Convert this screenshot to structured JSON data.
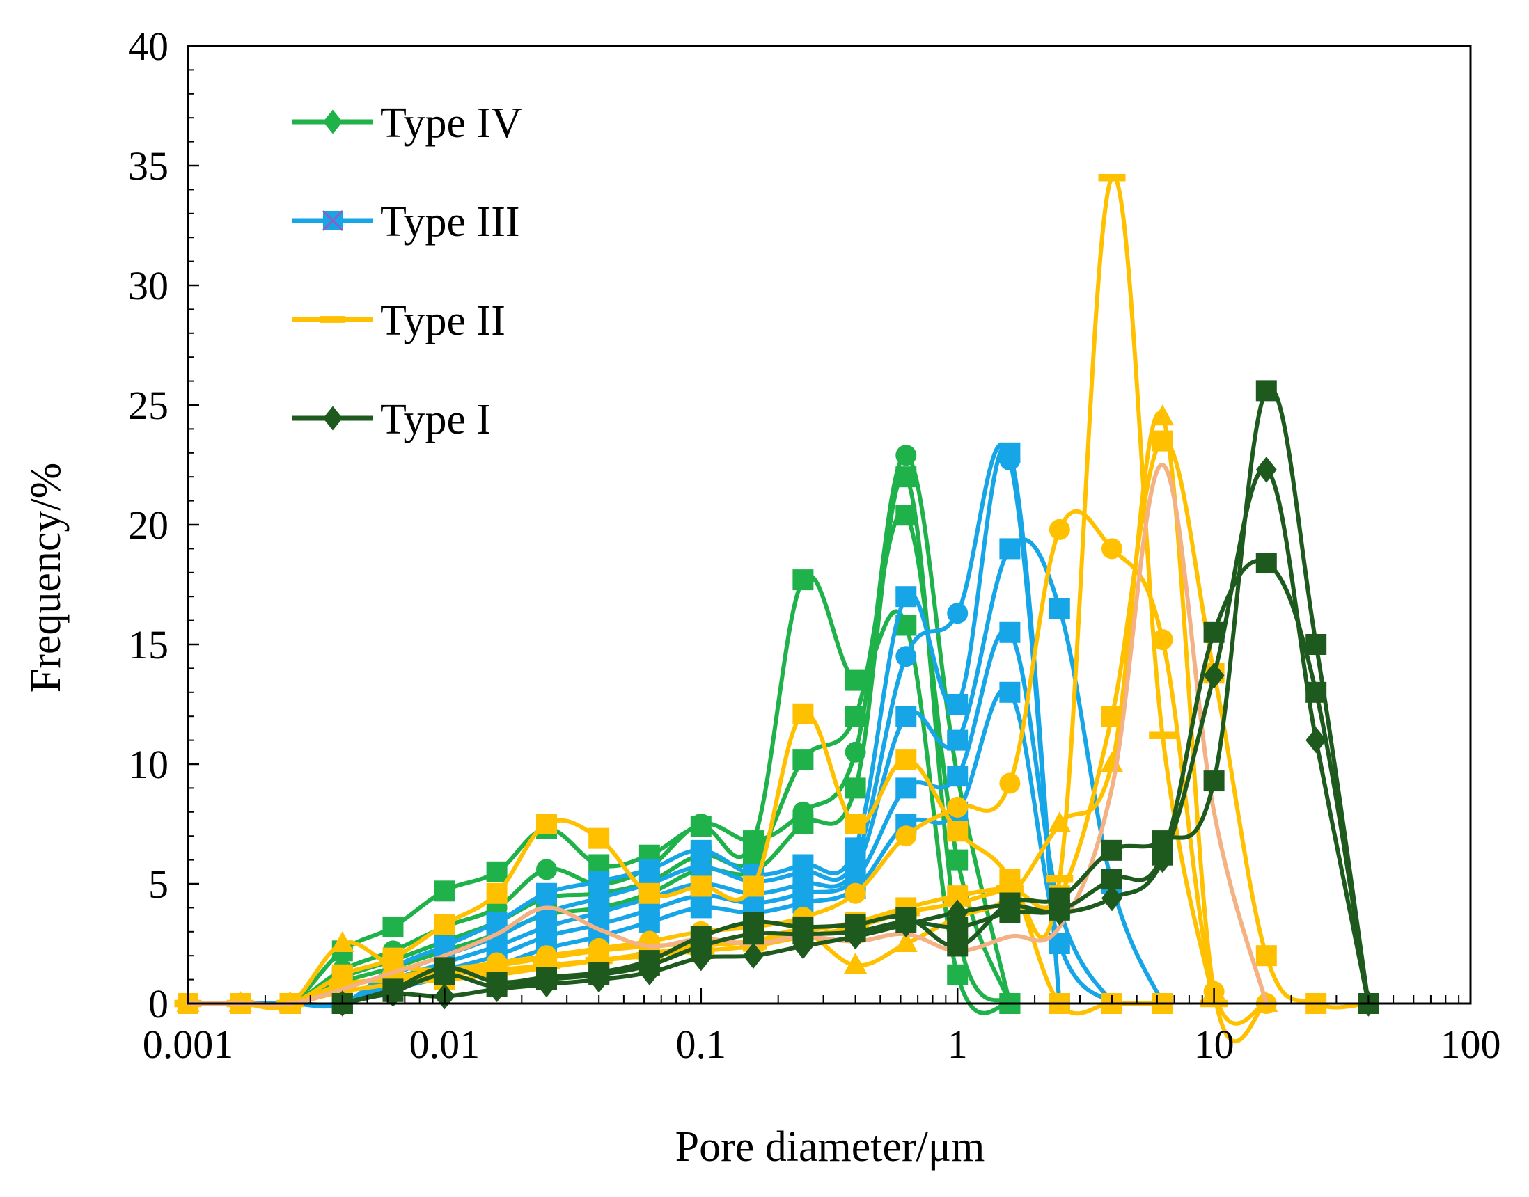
{
  "chart_data": {
    "type": "line",
    "title": "",
    "xlabel": "Pore diameter/μm",
    "ylabel": "Frequency/%",
    "xscale": "log",
    "xlim": [
      0.001,
      100
    ],
    "ylim": [
      0,
      40
    ],
    "xticks": [
      0.001,
      0.01,
      0.1,
      1,
      10,
      100
    ],
    "xtick_labels": [
      "0.001",
      "0.01",
      "0.1",
      "1",
      "10",
      "100"
    ],
    "yticks": [
      0,
      5,
      10,
      15,
      20,
      25,
      30,
      35,
      40
    ],
    "ytick_labels": [
      "0",
      "5",
      "10",
      "15",
      "20",
      "25",
      "30",
      "35",
      "40"
    ],
    "grid": false,
    "legend_position": "top-left",
    "legend": [
      {
        "label": "Type IV",
        "color": "#1fb24a",
        "marker": "diamond"
      },
      {
        "label": "Type  III",
        "color": "#16a6e8",
        "marker": "square-x"
      },
      {
        "label": "Type  II",
        "color": "#ffc000",
        "marker": "dash"
      },
      {
        "label": "Type  I",
        "color": "#1e5a1e",
        "marker": "diamond"
      }
    ],
    "x": [
      0.001,
      0.0016,
      0.0025,
      0.004,
      0.0063,
      0.01,
      0.016,
      0.025,
      0.04,
      0.063,
      0.1,
      0.16,
      0.25,
      0.4,
      0.63,
      1,
      1.6,
      2.5,
      4,
      6.3,
      10,
      16,
      25,
      40
    ],
    "series": [
      {
        "name": "Type IV a",
        "group": "Type IV",
        "color": "#1fb24a",
        "marker": "square",
        "values": [
          0,
          0,
          0,
          2.2,
          3.2,
          4.7,
          5.5,
          7.3,
          5.8,
          6.2,
          7.4,
          6.8,
          17.7,
          13.5,
          15.8,
          1.2,
          0,
          null,
          null,
          null,
          null,
          null,
          null,
          null
        ]
      },
      {
        "name": "Type IV b",
        "group": "Type IV",
        "color": "#1fb24a",
        "marker": "circle",
        "values": [
          0,
          0,
          0,
          1.4,
          2.2,
          3.2,
          4.0,
          5.6,
          5.0,
          5.7,
          7.5,
          6.8,
          8.0,
          10.5,
          22.9,
          9.5,
          0,
          null,
          null,
          null,
          null,
          null,
          null,
          null
        ]
      },
      {
        "name": "Type IV c",
        "group": "Type IV",
        "color": "#1fb24a",
        "marker": "square",
        "values": [
          0,
          0,
          0,
          1.1,
          1.8,
          2.6,
          3.4,
          4.4,
          4.6,
          5.1,
          6.2,
          6.0,
          10.2,
          12.0,
          20.4,
          6.0,
          0,
          null,
          null,
          null,
          null,
          null,
          null,
          null
        ]
      },
      {
        "name": "Type IV d",
        "group": "Type IV",
        "color": "#1fb24a",
        "marker": "square",
        "values": [
          0,
          0,
          0,
          0.9,
          1.5,
          2.2,
          2.9,
          3.7,
          4.0,
          4.6,
          5.6,
          5.5,
          7.5,
          9.0,
          22.0,
          3.0,
          0,
          null,
          null,
          null,
          null,
          null,
          null,
          null
        ]
      },
      {
        "name": "Type III a",
        "group": "Type  III",
        "color": "#16a6e8",
        "marker": "square",
        "values": [
          0,
          0,
          0,
          0,
          1.5,
          2.4,
          3.4,
          4.6,
          5.1,
          5.6,
          6.4,
          5.4,
          5.8,
          6.5,
          17.0,
          12.5,
          23.0,
          0,
          null,
          null,
          null,
          null,
          null,
          null
        ]
      },
      {
        "name": "Type III b",
        "group": "Type  III",
        "color": "#16a6e8",
        "marker": "circle",
        "values": [
          0,
          0,
          0,
          0,
          1.2,
          2.0,
          2.8,
          3.8,
          4.4,
          5.0,
          5.7,
          5.1,
          5.5,
          6.0,
          14.5,
          16.3,
          22.7,
          0,
          null,
          null,
          null,
          null,
          null,
          null
        ]
      },
      {
        "name": "Type III c",
        "group": "Type  III",
        "color": "#16a6e8",
        "marker": "square",
        "values": [
          0,
          0,
          0,
          0,
          1.0,
          1.7,
          2.4,
          3.2,
          3.8,
          4.4,
          5.0,
          4.6,
          5.0,
          5.6,
          12.0,
          11.0,
          19.0,
          16.5,
          5.0,
          0,
          null,
          null,
          null,
          null
        ]
      },
      {
        "name": "Type III d",
        "group": "Type  III",
        "color": "#16a6e8",
        "marker": "square",
        "values": [
          0,
          0,
          0,
          0,
          0.8,
          1.4,
          2.0,
          2.8,
          3.3,
          3.9,
          4.5,
          4.2,
          4.6,
          5.2,
          9.0,
          9.5,
          15.5,
          4.0,
          0,
          null,
          null,
          null,
          null,
          null
        ]
      },
      {
        "name": "Type III e",
        "group": "Type  III",
        "color": "#16a6e8",
        "marker": "square",
        "values": [
          0,
          0,
          0,
          0,
          0.6,
          1.1,
          1.6,
          2.3,
          2.8,
          3.4,
          4.0,
          3.8,
          4.2,
          4.8,
          7.5,
          8.0,
          13.0,
          2.5,
          0,
          null,
          null,
          null,
          null,
          null
        ]
      },
      {
        "name": "Type II a",
        "group": "Type  II",
        "color": "#ffc000",
        "marker": "square",
        "values": [
          0,
          0,
          0,
          1.2,
          1.9,
          3.3,
          4.6,
          7.5,
          6.9,
          4.6,
          4.9,
          4.9,
          12.1,
          7.5,
          10.2,
          7.2,
          5.2,
          0,
          0,
          0,
          null,
          null,
          null,
          null
        ]
      },
      {
        "name": "Type II b",
        "group": "Type  II",
        "color": "#ffc000",
        "marker": "triangle",
        "values": [
          0,
          0,
          0,
          2.5,
          1.6,
          1.4,
          1.6,
          1.9,
          2.2,
          2.4,
          2.5,
          2.6,
          3.0,
          1.6,
          2.5,
          3.6,
          4.5,
          7.5,
          10.0,
          24.5,
          0.5,
          0,
          null,
          null
        ]
      },
      {
        "name": "Type II c",
        "group": "Type  II",
        "color": "#ffc000",
        "marker": "dash",
        "values": [
          0,
          0,
          0,
          0.8,
          1.0,
          1.2,
          1.4,
          1.6,
          1.8,
          2.0,
          2.2,
          2.4,
          2.8,
          3.2,
          3.8,
          4.2,
          4.8,
          5.2,
          34.5,
          11.2,
          0,
          null,
          null,
          null
        ]
      },
      {
        "name": "Type II d",
        "group": "Type  II",
        "color": "#ffc000",
        "marker": "circle",
        "values": [
          0,
          0,
          0,
          0.7,
          1.1,
          1.4,
          1.7,
          2.0,
          2.3,
          2.6,
          3.0,
          3.2,
          3.6,
          4.6,
          7.0,
          8.2,
          9.2,
          19.8,
          19.0,
          15.2,
          0.5,
          0,
          null,
          null
        ]
      },
      {
        "name": "Type II e",
        "group": "Type  II",
        "color": "#ffc000",
        "marker": "square",
        "values": [
          0,
          0,
          0,
          0.5,
          0.8,
          1.0,
          1.2,
          1.5,
          1.8,
          2.1,
          2.4,
          2.6,
          3.0,
          3.4,
          4.0,
          4.5,
          4.8,
          4.5,
          12.0,
          23.5,
          13.8,
          2.0,
          0,
          0
        ]
      },
      {
        "name": "Type II f",
        "group": "Type  II",
        "color": "#f4b183",
        "marker": "none",
        "values": [
          0,
          0,
          0,
          0.6,
          1.3,
          2.0,
          2.9,
          4.0,
          3.1,
          2.4,
          2.7,
          2.5,
          2.8,
          2.6,
          2.9,
          2.2,
          2.8,
          3.2,
          9.0,
          22.5,
          8.0,
          0,
          null,
          null
        ]
      },
      {
        "name": "Type I a",
        "group": "Type  I",
        "color": "#1e5a1e",
        "marker": "square",
        "values": [
          null,
          null,
          null,
          0,
          0.6,
          1.5,
          0.9,
          1.1,
          1.3,
          1.8,
          2.8,
          3.4,
          3.2,
          3.3,
          3.6,
          2.4,
          4.2,
          4.4,
          6.4,
          6.8,
          9.3,
          25.6,
          15.0,
          0
        ]
      },
      {
        "name": "Type I b",
        "group": "Type  I",
        "color": "#1e5a1e",
        "marker": "diamond",
        "values": [
          null,
          null,
          null,
          0,
          0.4,
          0.3,
          0.6,
          0.8,
          1.0,
          1.3,
          1.9,
          2.0,
          2.4,
          2.8,
          3.3,
          3.8,
          4.1,
          3.8,
          4.4,
          6.0,
          13.7,
          22.3,
          11.0,
          0
        ]
      },
      {
        "name": "Type I c",
        "group": "Type  I",
        "color": "#1e5a1e",
        "marker": "square",
        "values": [
          null,
          null,
          null,
          0,
          0.5,
          1.2,
          0.7,
          1.0,
          1.2,
          1.6,
          2.4,
          2.9,
          2.9,
          3.0,
          3.4,
          3.2,
          3.8,
          3.9,
          5.2,
          6.2,
          15.5,
          18.4,
          13.0,
          0
        ]
      }
    ]
  }
}
